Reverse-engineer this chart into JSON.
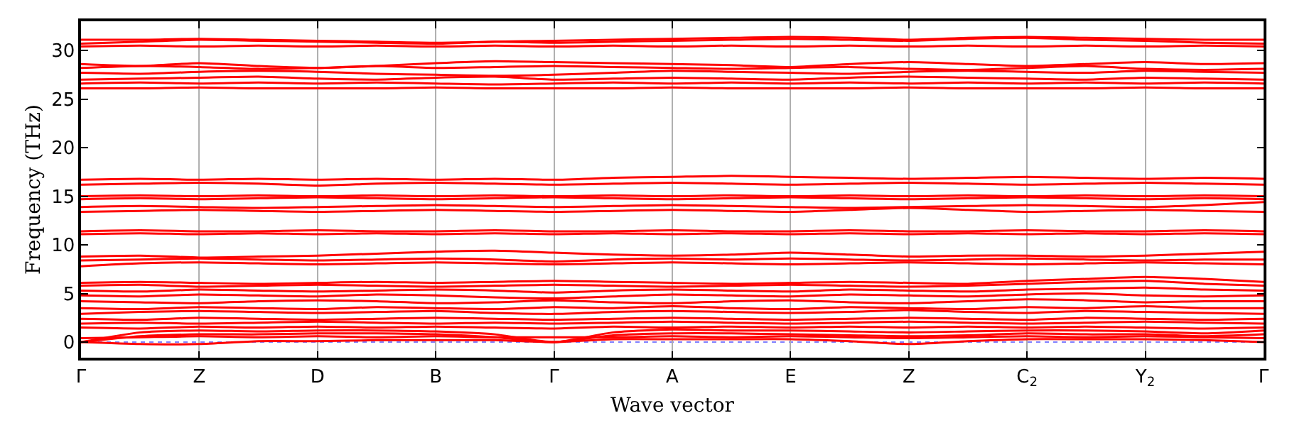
{
  "chart_data": {
    "type": "line",
    "xlabel": "Wave vector",
    "ylabel": "Frequency (THz)",
    "categories": [
      "Γ",
      null,
      "Z",
      null,
      "D",
      null,
      "B",
      null,
      "Γ",
      null,
      "A",
      null,
      "E",
      null,
      "Z",
      null,
      "C$_{2}$",
      null,
      "Y$_{2}$",
      null,
      "Γ"
    ],
    "ylim": [
      -1.6,
      33
    ],
    "yticks": [
      0,
      5,
      10,
      15,
      20,
      25,
      30
    ],
    "grid": "x",
    "line_style": "solid",
    "ref_lines": [
      {
        "axis": "y",
        "value": 0,
        "color": "#8080ff",
        "line_style": "dotted"
      }
    ],
    "series": [
      {
        "color": "#ff0000",
        "values": [
          0,
          -0.2,
          -0.2,
          0.1,
          0.1,
          0.2,
          0.2,
          0.2,
          0,
          0.3,
          0.3,
          0.3,
          0.3,
          0.1,
          -0.2,
          0.1,
          0.3,
          0.3,
          0.3,
          0.2,
          0
        ]
      },
      {
        "color": "#ff0000",
        "values": [
          0,
          0.6,
          0.8,
          0.8,
          0.9,
          0.9,
          0.8,
          0.5,
          0,
          0.7,
          0.9,
          0.9,
          0.8,
          0.7,
          0.6,
          0.7,
          0.9,
          0.8,
          0.8,
          0.6,
          0.8
        ]
      },
      {
        "color": "#ff0000",
        "values": [
          0,
          1.0,
          1.2,
          1.1,
          1.2,
          1.2,
          1.1,
          0.8,
          0,
          1.0,
          1.3,
          1.2,
          1.2,
          1.1,
          1.0,
          1.1,
          1.2,
          1.2,
          1.1,
          0.9,
          1.2
        ]
      },
      {
        "color": "#ff0000",
        "values": [
          0.4,
          0.5,
          0.6,
          0.5,
          0.6,
          0.5,
          0.6,
          0.5,
          0.5,
          0.5,
          0.6,
          0.5,
          0.6,
          0.5,
          0.4,
          0.5,
          0.6,
          0.5,
          0.6,
          0.5,
          0.4
        ]
      },
      {
        "color": "#ff0000",
        "values": [
          1.5,
          1.4,
          1.6,
          1.5,
          1.6,
          1.5,
          1.6,
          1.5,
          1.4,
          1.6,
          1.5,
          1.6,
          1.5,
          1.6,
          1.5,
          1.6,
          1.5,
          1.6,
          1.5,
          1.4,
          1.5
        ]
      },
      {
        "color": "#ff0000",
        "values": [
          1.9,
          2.0,
          1.9,
          2.0,
          2.1,
          2.0,
          1.9,
          2.0,
          1.9,
          2.0,
          2.1,
          2.0,
          1.9,
          2.0,
          2.1,
          2.0,
          1.9,
          2.0,
          2.1,
          2.0,
          1.9
        ]
      },
      {
        "color": "#ff0000",
        "values": [
          2.4,
          2.3,
          2.5,
          2.4,
          2.3,
          2.4,
          2.5,
          2.4,
          2.3,
          2.4,
          2.5,
          2.4,
          2.3,
          2.4,
          2.5,
          2.4,
          2.3,
          2.5,
          2.4,
          2.3,
          2.4
        ]
      },
      {
        "color": "#ff0000",
        "values": [
          2.9,
          3.1,
          3.2,
          3.1,
          3.0,
          3.1,
          3.2,
          3.0,
          2.9,
          3.1,
          3.2,
          3.1,
          3.0,
          3.1,
          3.3,
          3.1,
          3.0,
          3.2,
          3.1,
          3.0,
          2.9
        ]
      },
      {
        "color": "#ff0000",
        "values": [
          3.5,
          3.4,
          3.6,
          3.5,
          3.4,
          3.6,
          3.5,
          3.4,
          3.6,
          3.5,
          3.7,
          3.5,
          3.4,
          3.6,
          3.5,
          3.4,
          3.6,
          3.5,
          3.7,
          3.5,
          3.5
        ]
      },
      {
        "color": "#ff0000",
        "values": [
          4.2,
          4.1,
          4.0,
          4.2,
          4.3,
          4.2,
          4.0,
          4.1,
          4.3,
          4.1,
          4.0,
          4.2,
          4.3,
          4.1,
          4.0,
          4.2,
          4.4,
          4.3,
          4.1,
          4.2,
          4.2
        ]
      },
      {
        "color": "#ff0000",
        "values": [
          4.8,
          4.7,
          4.9,
          4.8,
          4.7,
          4.9,
          4.8,
          4.6,
          4.5,
          4.7,
          4.9,
          4.8,
          4.7,
          4.9,
          4.8,
          4.7,
          4.9,
          5.0,
          4.8,
          4.7,
          4.8
        ]
      },
      {
        "color": "#ff0000",
        "values": [
          5.3,
          5.2,
          5.4,
          5.3,
          5.2,
          5.3,
          5.4,
          5.3,
          5.1,
          5.3,
          5.4,
          5.3,
          5.2,
          5.4,
          5.3,
          5.2,
          5.4,
          5.5,
          5.6,
          5.4,
          5.3
        ]
      },
      {
        "color": "#ff0000",
        "values": [
          5.8,
          5.9,
          5.7,
          5.8,
          5.9,
          5.8,
          5.7,
          5.8,
          5.9,
          5.8,
          5.7,
          5.8,
          5.9,
          5.8,
          5.7,
          5.8,
          6.0,
          6.2,
          6.3,
          6.0,
          5.8
        ]
      },
      {
        "color": "#ff0000",
        "values": [
          6.1,
          6.2,
          6.1,
          6.0,
          6.1,
          6.2,
          6.1,
          6.2,
          6.3,
          6.2,
          6.1,
          6.0,
          6.1,
          6.2,
          6.1,
          6.0,
          6.3,
          6.5,
          6.7,
          6.5,
          6.2
        ]
      },
      {
        "color": "#ff0000",
        "values": [
          7.8,
          8.1,
          8.2,
          8.1,
          8.0,
          8.1,
          8.2,
          8.1,
          8.0,
          8.1,
          8.2,
          8.1,
          8.0,
          8.1,
          8.2,
          8.1,
          8.0,
          8.1,
          8.2,
          8.1,
          8.0
        ]
      },
      {
        "color": "#ff0000",
        "values": [
          8.4,
          8.5,
          8.6,
          8.5,
          8.4,
          8.5,
          8.6,
          8.5,
          8.3,
          8.5,
          8.6,
          8.5,
          8.6,
          8.5,
          8.4,
          8.5,
          8.6,
          8.5,
          8.4,
          8.5,
          8.5
        ]
      },
      {
        "color": "#ff0000",
        "values": [
          8.8,
          8.9,
          8.7,
          8.8,
          8.9,
          9.1,
          9.3,
          9.4,
          9.2,
          9.0,
          8.9,
          9.0,
          9.2,
          9.0,
          8.8,
          8.9,
          8.9,
          8.8,
          8.9,
          9.1,
          9.3
        ]
      },
      {
        "color": "#ff0000",
        "values": [
          11.1,
          11.2,
          11.1,
          11.2,
          11.1,
          11.2,
          11.1,
          11.2,
          11.1,
          11.2,
          11.1,
          11.2,
          11.1,
          11.2,
          11.1,
          11.2,
          11.1,
          11.2,
          11.1,
          11.2,
          11.1
        ]
      },
      {
        "color": "#ff0000",
        "values": [
          11.4,
          11.5,
          11.4,
          11.4,
          11.5,
          11.4,
          11.4,
          11.5,
          11.4,
          11.4,
          11.5,
          11.4,
          11.4,
          11.5,
          11.4,
          11.4,
          11.5,
          11.4,
          11.4,
          11.5,
          11.4
        ]
      },
      {
        "color": "#ff0000",
        "values": [
          13.4,
          13.5,
          13.6,
          13.5,
          13.4,
          13.5,
          13.6,
          13.5,
          13.4,
          13.5,
          13.6,
          13.5,
          13.4,
          13.6,
          13.8,
          13.6,
          13.4,
          13.5,
          13.6,
          13.5,
          13.4
        ]
      },
      {
        "color": "#ff0000",
        "values": [
          13.9,
          14.0,
          13.9,
          13.8,
          13.9,
          14.0,
          14.1,
          14.0,
          13.9,
          14.0,
          14.1,
          14.0,
          13.9,
          13.8,
          13.9,
          14.0,
          14.1,
          14.0,
          13.9,
          14.1,
          14.4
        ]
      },
      {
        "color": "#ff0000",
        "values": [
          14.7,
          14.8,
          14.7,
          14.8,
          14.9,
          14.8,
          14.7,
          14.8,
          14.9,
          14.8,
          14.7,
          14.8,
          14.9,
          14.8,
          14.7,
          14.8,
          14.9,
          14.8,
          14.7,
          14.8,
          14.7
        ]
      },
      {
        "color": "#ff0000",
        "values": [
          15.0,
          15.1,
          15.0,
          15.1,
          15.0,
          15.1,
          15.0,
          15.1,
          15.0,
          15.1,
          15.0,
          15.1,
          15.0,
          15.1,
          15.0,
          15.1,
          15.0,
          15.1,
          15.0,
          15.1,
          15.0
        ]
      },
      {
        "color": "#ff0000",
        "values": [
          16.2,
          16.3,
          16.4,
          16.3,
          16.1,
          16.3,
          16.4,
          16.3,
          16.2,
          16.3,
          16.4,
          16.3,
          16.2,
          16.3,
          16.4,
          16.3,
          16.2,
          16.3,
          16.4,
          16.3,
          16.2
        ]
      },
      {
        "color": "#ff0000",
        "values": [
          16.7,
          16.8,
          16.7,
          16.8,
          16.7,
          16.8,
          16.7,
          16.8,
          16.7,
          16.9,
          17.0,
          17.1,
          17.0,
          16.9,
          16.8,
          16.9,
          17.0,
          16.9,
          16.8,
          16.9,
          16.8
        ]
      },
      {
        "color": "#ff0000",
        "values": [
          26.1,
          26.1,
          26.2,
          26.1,
          26.1,
          26.1,
          26.2,
          26.1,
          26.1,
          26.1,
          26.2,
          26.1,
          26.1,
          26.1,
          26.2,
          26.1,
          26.1,
          26.1,
          26.2,
          26.1,
          26.1
        ]
      },
      {
        "color": "#ff0000",
        "values": [
          26.6,
          26.7,
          26.6,
          26.7,
          26.6,
          26.7,
          26.6,
          26.5,
          26.6,
          26.7,
          26.6,
          26.7,
          26.6,
          26.7,
          26.6,
          26.7,
          26.6,
          26.7,
          26.6,
          26.7,
          26.6
        ]
      },
      {
        "color": "#ff0000",
        "values": [
          27.0,
          27.1,
          27.2,
          27.3,
          27.1,
          27.0,
          27.2,
          27.3,
          27.0,
          27.1,
          27.2,
          27.1,
          27.0,
          27.2,
          27.3,
          27.2,
          27.1,
          27.0,
          27.2,
          27.1,
          27.0
        ]
      },
      {
        "color": "#ff0000",
        "values": [
          27.7,
          27.6,
          27.8,
          27.9,
          27.8,
          27.6,
          27.5,
          27.4,
          27.5,
          27.7,
          27.9,
          27.8,
          27.7,
          27.6,
          27.8,
          27.9,
          27.8,
          27.7,
          27.9,
          27.8,
          27.7
        ]
      },
      {
        "color": "#ff0000",
        "values": [
          28.2,
          28.4,
          28.3,
          28.1,
          28.2,
          28.4,
          28.2,
          28.3,
          28.4,
          28.3,
          28.2,
          28.1,
          28.2,
          28.3,
          28.1,
          28.0,
          28.2,
          28.4,
          28.1,
          28.0,
          28.1
        ]
      },
      {
        "color": "#ff0000",
        "values": [
          28.6,
          28.4,
          28.7,
          28.4,
          28.2,
          28.4,
          28.7,
          28.9,
          28.8,
          28.7,
          28.6,
          28.5,
          28.3,
          28.6,
          28.8,
          28.6,
          28.4,
          28.6,
          28.8,
          28.6,
          28.7
        ]
      },
      {
        "color": "#ff0000",
        "values": [
          30.4,
          30.5,
          30.4,
          30.5,
          30.4,
          30.5,
          30.4,
          30.5,
          30.4,
          30.5,
          30.4,
          30.5,
          30.4,
          30.5,
          30.4,
          30.5,
          30.4,
          30.5,
          30.4,
          30.5,
          30.4
        ]
      },
      {
        "color": "#ff0000",
        "values": [
          30.7,
          30.9,
          31.1,
          31.0,
          30.9,
          30.8,
          30.7,
          30.9,
          30.8,
          30.9,
          31.0,
          31.1,
          31.2,
          31.1,
          31.0,
          31.2,
          31.3,
          31.1,
          31.0,
          30.8,
          30.7
        ]
      },
      {
        "color": "#ff0000",
        "values": [
          31.1,
          31.1,
          31.2,
          31.1,
          31.0,
          30.9,
          30.8,
          30.9,
          31.0,
          31.1,
          31.2,
          31.3,
          31.4,
          31.3,
          31.1,
          31.3,
          31.4,
          31.3,
          31.2,
          31.1,
          31.1
        ]
      }
    ]
  }
}
